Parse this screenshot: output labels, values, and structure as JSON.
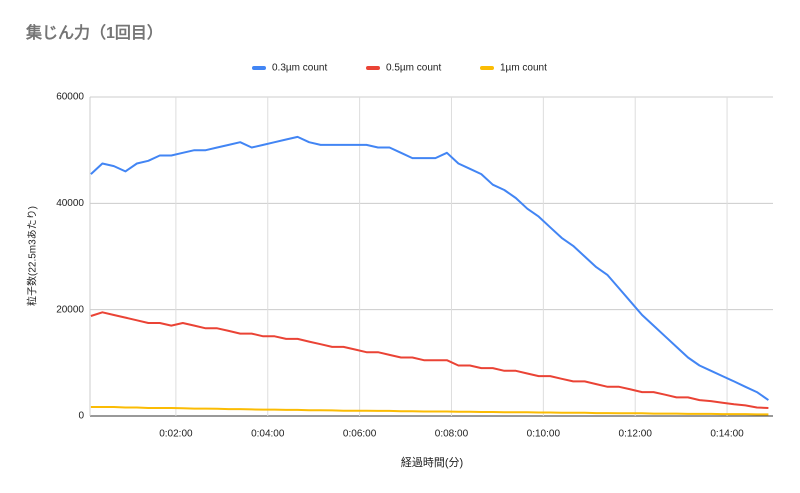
{
  "chart_data": {
    "type": "line",
    "title": "集じん力（1回目）",
    "x_label": "経過時間(分)",
    "y_label": "粒子数(22.5m3あたり)",
    "x": [
      0.15,
      0.4,
      0.65,
      0.9,
      1.15,
      1.4,
      1.65,
      1.9,
      2.15,
      2.4,
      2.65,
      2.9,
      3.15,
      3.4,
      3.65,
      3.9,
      4.15,
      4.4,
      4.65,
      4.9,
      5.15,
      5.4,
      5.65,
      5.9,
      6.15,
      6.4,
      6.65,
      6.9,
      7.15,
      7.4,
      7.65,
      7.9,
      8.15,
      8.4,
      8.65,
      8.9,
      9.15,
      9.4,
      9.65,
      9.9,
      10.15,
      10.4,
      10.65,
      10.9,
      11.15,
      11.4,
      11.65,
      11.9,
      12.15,
      12.4,
      12.65,
      12.9,
      13.15,
      13.4,
      13.65,
      13.9,
      14.15,
      14.4,
      14.65,
      14.9
    ],
    "series": [
      {
        "name": "0.3µm count",
        "color": "#4285f4",
        "values": [
          45500,
          47500,
          47000,
          46000,
          47500,
          48000,
          49000,
          49000,
          49500,
          50000,
          50000,
          50500,
          51000,
          51500,
          50500,
          51000,
          51500,
          52000,
          52500,
          51500,
          51000,
          51000,
          51000,
          51000,
          51000,
          50500,
          50500,
          49500,
          48500,
          48500,
          48500,
          49500,
          47500,
          46500,
          45500,
          43500,
          42500,
          41000,
          39000,
          37500,
          35500,
          33500,
          32000,
          30000,
          28000,
          26500,
          24000,
          21500,
          19000,
          17000,
          15000,
          13000,
          11000,
          9500,
          8500,
          7500,
          6500,
          5500,
          4500,
          3000
        ]
      },
      {
        "name": "0.5µm count",
        "color": "#ea4335",
        "values": [
          18800,
          19500,
          19000,
          18500,
          18000,
          17500,
          17500,
          17000,
          17500,
          17000,
          16500,
          16500,
          16000,
          15500,
          15500,
          15000,
          15000,
          14500,
          14500,
          14000,
          13500,
          13000,
          13000,
          12500,
          12000,
          12000,
          11500,
          11000,
          11000,
          10500,
          10500,
          10500,
          9500,
          9500,
          9000,
          9000,
          8500,
          8500,
          8000,
          7500,
          7500,
          7000,
          6500,
          6500,
          6000,
          5500,
          5500,
          5000,
          4500,
          4500,
          4000,
          3500,
          3500,
          3000,
          2800,
          2500,
          2200,
          2000,
          1600,
          1500
        ]
      },
      {
        "name": "1µm count",
        "color": "#fbbc04",
        "values": [
          1700,
          1700,
          1700,
          1600,
          1600,
          1500,
          1500,
          1500,
          1450,
          1400,
          1400,
          1350,
          1300,
          1300,
          1250,
          1200,
          1200,
          1150,
          1150,
          1100,
          1100,
          1050,
          1000,
          1000,
          1000,
          950,
          950,
          900,
          900,
          850,
          850,
          850,
          800,
          800,
          750,
          750,
          700,
          700,
          700,
          650,
          650,
          600,
          600,
          600,
          550,
          550,
          500,
          500,
          500,
          450,
          450,
          450,
          400,
          400,
          400,
          350,
          350,
          350,
          300,
          300
        ]
      }
    ],
    "xlim": [
      0.13,
      15
    ],
    "xticks": [
      {
        "value": 2,
        "label": "0:02:00"
      },
      {
        "value": 4,
        "label": "0:04:00"
      },
      {
        "value": 6,
        "label": "0:06:00"
      },
      {
        "value": 8,
        "label": "0:08:00"
      },
      {
        "value": 10,
        "label": "0:10:00"
      },
      {
        "value": 12,
        "label": "0:12:00"
      },
      {
        "value": 14,
        "label": "0:14:00"
      }
    ],
    "ylim": [
      0,
      60000
    ],
    "yticks": [
      0,
      20000,
      40000,
      60000
    ],
    "grid": true,
    "legend": "top"
  }
}
